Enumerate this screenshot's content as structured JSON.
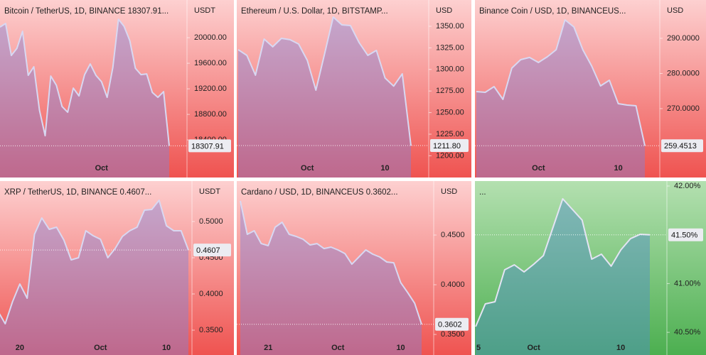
{
  "chart_data": [
    {
      "type": "line",
      "title": "Bitcoin / TetherUS, 1D, BINANCE  18307.91...",
      "unit": "USDT",
      "categories": [
        null,
        null,
        null,
        null,
        null,
        null,
        null,
        null,
        null,
        null,
        null,
        null,
        null,
        null,
        null,
        null,
        null,
        null,
        "Oct",
        null,
        null,
        null,
        null,
        null,
        null,
        null,
        null,
        null,
        null,
        null,
        null
      ],
      "values": [
        20167,
        20222,
        19722,
        19833,
        20100,
        19411,
        19544,
        18867,
        18467,
        19400,
        19256,
        18922,
        18833,
        19211,
        19089,
        19422,
        19589,
        19411,
        19311,
        19067,
        19533,
        20289,
        20178,
        19956,
        19522,
        19422,
        19433,
        19144,
        19067,
        19156,
        18307.91
      ],
      "ylim": [
        18090,
        20590
      ],
      "yticks": [
        {
          "value": 18400,
          "label": "18400.00"
        },
        {
          "value": 18800,
          "label": "18800.00"
        },
        {
          "value": 19200,
          "label": "19200.00"
        },
        {
          "value": 19600,
          "label": "19600.00"
        },
        {
          "value": 20000,
          "label": "20000.00"
        }
      ],
      "color": "#d8d8f2",
      "fill": "rgba(130,130,215,0.45)",
      "background": [
        "#fdd0d0",
        "#ef5350"
      ]
    },
    {
      "type": "line",
      "title": "Ethereum / U.S. Dollar, 1D, BITSTAMP...",
      "unit": "USD",
      "categories": [
        null,
        null,
        null,
        null,
        null,
        null,
        null,
        null,
        "Oct",
        null,
        null,
        null,
        null,
        null,
        null,
        null,
        null,
        "10",
        null,
        null,
        null
      ],
      "values": [
        1322.9,
        1316.3,
        1293.3,
        1335.2,
        1326.2,
        1336.0,
        1334.4,
        1329.4,
        1310.5,
        1276.0,
        1317.9,
        1360.7,
        1351.6,
        1350.8,
        1331.1,
        1316.3,
        1322.0,
        1290.0,
        1280.7,
        1294.9,
        1211.8
      ],
      "value_labels": [
        null,
        null,
        null,
        null,
        null,
        null,
        null,
        null,
        null,
        null,
        null,
        null,
        null,
        null,
        null,
        null,
        null,
        null,
        null,
        null,
        "1211.80"
      ],
      "ylim": [
        1195.4,
        1380.4
      ],
      "yticks": [
        {
          "value": 1200,
          "label": "1200.00"
        },
        {
          "value": 1225,
          "label": "1225.00"
        },
        {
          "value": 1250,
          "label": "1250.00"
        },
        {
          "value": 1275,
          "label": "1275.00"
        },
        {
          "value": 1300,
          "label": "1300.00"
        },
        {
          "value": 1325,
          "label": "1325.00"
        },
        {
          "value": 1350,
          "label": "1350.00"
        }
      ],
      "color": "#d8d8f2",
      "fill": "rgba(130,130,215,0.45)",
      "background": [
        "#fdd0d0",
        "#ef5350"
      ]
    },
    {
      "type": "line",
      "title": "Binance Coin / USD, 1D, BINANCEUS...",
      "unit": "USD",
      "categories": [
        null,
        null,
        null,
        null,
        null,
        null,
        null,
        "Oct",
        null,
        null,
        null,
        null,
        null,
        null,
        null,
        null,
        "10",
        null,
        null,
        null
      ],
      "values": [
        274.85,
        274.65,
        276.26,
        272.63,
        281.52,
        283.94,
        284.55,
        283.13,
        284.75,
        286.77,
        295.25,
        293.23,
        286.77,
        282.12,
        276.46,
        278.08,
        271.41,
        271.01,
        270.81,
        259.4513
      ],
      "ylim": [
        255.45,
        300.9
      ],
      "yticks": [
        {
          "value": 270,
          "label": "270.0000"
        },
        {
          "value": 280,
          "label": "280.0000"
        },
        {
          "value": 290,
          "label": "290.0000"
        }
      ],
      "color": "#d8d8f2",
      "fill": "rgba(130,130,215,0.45)",
      "background": [
        "#fdd0d0",
        "#ef5350"
      ]
    },
    {
      "type": "line",
      "title": "XRP / TetherUS, 1D, BINANCE  0.4607...",
      "unit": "USDT",
      "categories": [
        null,
        null,
        null,
        "20",
        null,
        null,
        null,
        null,
        null,
        null,
        null,
        null,
        null,
        null,
        "Oct",
        null,
        null,
        null,
        null,
        null,
        null,
        null,
        null,
        "10",
        null,
        null,
        null
      ],
      "values": [
        0.3765,
        0.3588,
        0.3892,
        0.4137,
        0.3941,
        0.4824,
        0.5049,
        0.4892,
        0.4922,
        0.4745,
        0.4471,
        0.45,
        0.4873,
        0.4804,
        0.4755,
        0.45,
        0.4627,
        0.4794,
        0.4873,
        0.4922,
        0.5157,
        0.5167,
        0.5294,
        0.4941,
        0.4873,
        0.4873,
        0.4607
      ],
      "ylim": [
        0.3353,
        0.5559
      ],
      "yticks": [
        {
          "value": 0.35,
          "label": "0.3500"
        },
        {
          "value": 0.4,
          "label": "0.4000"
        },
        {
          "value": 0.45,
          "label": "0.4500"
        },
        {
          "value": 0.5,
          "label": "0.5000"
        }
      ],
      "color": "#d8d8f2",
      "fill": "rgba(130,130,215,0.45)",
      "background": [
        "#fdd0d0",
        "#ef5350"
      ]
    },
    {
      "type": "line",
      "title": "Cardano / USD, 1D, BINANCEUS  0.3602...",
      "unit": "USD",
      "categories": [
        null,
        null,
        null,
        null,
        "21",
        null,
        null,
        null,
        null,
        null,
        null,
        null,
        null,
        null,
        "Oct",
        null,
        null,
        null,
        null,
        null,
        null,
        null,
        null,
        "10",
        null,
        null,
        null
      ],
      "values": [
        0.4843,
        0.4507,
        0.4543,
        0.4414,
        0.4393,
        0.4579,
        0.4629,
        0.4507,
        0.4486,
        0.4457,
        0.44,
        0.4414,
        0.4364,
        0.4379,
        0.435,
        0.4314,
        0.4207,
        0.4279,
        0.435,
        0.4307,
        0.4279,
        0.4229,
        0.4221,
        0.4021,
        0.3921,
        0.3814,
        0.3602
      ],
      "ylim": [
        0.3436,
        0.5043
      ],
      "yticks": [
        {
          "value": 0.35,
          "label": "0.3500"
        },
        {
          "value": 0.4,
          "label": "0.4000"
        },
        {
          "value": 0.45,
          "label": "0.4500"
        }
      ],
      "color": "#d8d8f2",
      "fill": "rgba(130,130,215,0.45)",
      "background": [
        "#fdd0d0",
        "#ef5350"
      ]
    },
    {
      "type": "line",
      "title": "...",
      "categories": [
        "5",
        null,
        null,
        null,
        null,
        null,
        "Oct",
        null,
        null,
        null,
        null,
        null,
        null,
        null,
        null,
        "10",
        null,
        null,
        null
      ],
      "values": [
        40.559,
        40.792,
        40.814,
        41.141,
        41.192,
        41.119,
        41.199,
        41.287,
        41.578,
        41.869,
        41.76,
        41.651,
        41.25,
        41.301,
        41.178,
        41.345,
        41.461,
        41.505,
        41.5
      ],
      "value_labels": [
        null,
        null,
        null,
        null,
        null,
        null,
        null,
        null,
        null,
        null,
        null,
        null,
        null,
        null,
        null,
        null,
        null,
        null,
        "41.50%"
      ],
      "ylim": [
        40.4134,
        42.0509
      ],
      "yticks": [
        {
          "value": 40.5,
          "label": "40.50%"
        },
        {
          "value": 41,
          "label": "41.00%"
        },
        {
          "value": 42,
          "label": "42.00%"
        }
      ],
      "color": "#e4e4f4",
      "fill": "rgba(80,140,205,0.45)",
      "background": [
        "#b4e0b0",
        "#4caf50"
      ]
    }
  ]
}
